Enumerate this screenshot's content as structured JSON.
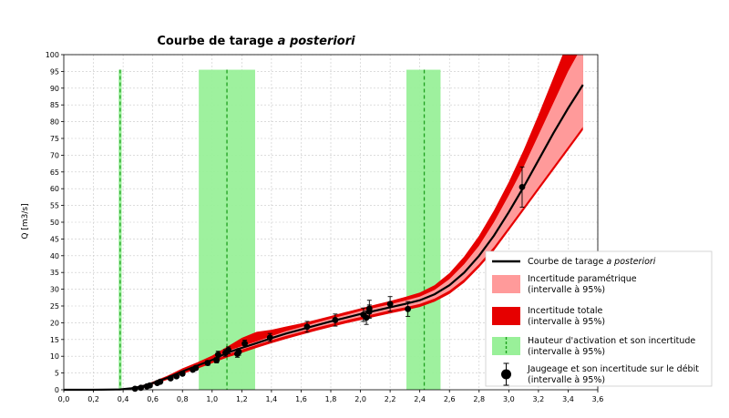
{
  "chart_data": {
    "type": "line",
    "title_main": "Courbe de tarage ",
    "title_em": "a posteriori",
    "xlabel": "",
    "ylabel": "Q [m3/s]",
    "xlim": [
      0,
      3.6
    ],
    "ylim": [
      0,
      100
    ],
    "xticks": [
      "0,0",
      "0,2",
      "0,4",
      "0,6",
      "0,8",
      "1,0",
      "1,2",
      "1,4",
      "1,6",
      "1,8",
      "2,0",
      "2,2",
      "2,4",
      "2,6",
      "2,8",
      "3,0",
      "3,2",
      "3,4",
      "3,6"
    ],
    "xtick_values": [
      0,
      0.2,
      0.4,
      0.6,
      0.8,
      1.0,
      1.2,
      1.4,
      1.6,
      1.8,
      2.0,
      2.2,
      2.4,
      2.6,
      2.8,
      3.0,
      3.2,
      3.4,
      3.6
    ],
    "yticks": [
      "0",
      "5",
      "10",
      "15",
      "20",
      "25",
      "30",
      "35",
      "40",
      "45",
      "50",
      "55",
      "60",
      "65",
      "70",
      "75",
      "80",
      "85",
      "90",
      "95",
      "100"
    ],
    "ytick_values": [
      0,
      5,
      10,
      15,
      20,
      25,
      30,
      35,
      40,
      45,
      50,
      55,
      60,
      65,
      70,
      75,
      80,
      85,
      90,
      95,
      100
    ],
    "grid": true,
    "legend_position": "bottom-right",
    "colors": {
      "curve": "#000000",
      "parametric": "#ff9a9a",
      "total": "#e60000",
      "activation": "#99f099",
      "activation_line": "#1fa01f",
      "gauging": "#000000"
    },
    "activation_heights": [
      {
        "value": 0.38,
        "low": 0.37,
        "high": 0.39
      },
      {
        "value": 1.1,
        "low": 0.91,
        "high": 1.29
      },
      {
        "value": 2.43,
        "low": 2.31,
        "high": 2.54
      }
    ],
    "activation_band_ymax": 95.5,
    "rating_curve": {
      "x": [
        0.0,
        0.2,
        0.38,
        0.45,
        0.5,
        0.55,
        0.6,
        0.7,
        0.8,
        0.9,
        1.0,
        1.1,
        1.2,
        1.3,
        1.4,
        1.5,
        1.6,
        1.7,
        1.8,
        1.9,
        2.0,
        2.1,
        2.2,
        2.3,
        2.4,
        2.5,
        2.6,
        2.7,
        2.8,
        2.9,
        3.0,
        3.1,
        3.2,
        3.3,
        3.4,
        3.5
      ],
      "q": [
        0,
        0,
        0.1,
        0.4,
        0.8,
        1.3,
        2.0,
        3.6,
        5.5,
        7.2,
        8.9,
        11.0,
        12.5,
        13.9,
        15.4,
        16.8,
        18.0,
        19.2,
        20.4,
        21.5,
        22.6,
        23.6,
        24.6,
        25.6,
        26.7,
        28.5,
        31.2,
        35.0,
        40.0,
        46.0,
        53.0,
        60.5,
        68.5,
        76.5,
        84.0,
        91.0
      ]
    },
    "parametric_band": {
      "low": [
        0,
        0,
        0.1,
        0.35,
        0.7,
        1.2,
        1.85,
        3.4,
        5.2,
        6.9,
        8.6,
        10.5,
        12.0,
        13.4,
        14.8,
        16.1,
        17.3,
        18.5,
        19.6,
        20.7,
        21.7,
        22.7,
        23.7,
        24.6,
        25.6,
        27.2,
        29.6,
        33.0,
        37.5,
        42.6,
        48.5,
        54.5,
        60.5,
        66.5,
        72.5,
        78.5
      ],
      "high": [
        0,
        0,
        0.1,
        0.45,
        0.9,
        1.4,
        2.15,
        3.8,
        5.8,
        7.5,
        9.2,
        11.5,
        13.0,
        14.4,
        16.0,
        17.5,
        18.7,
        20.0,
        21.2,
        22.3,
        23.5,
        24.5,
        25.5,
        26.6,
        27.8,
        29.8,
        33.0,
        37.5,
        43.0,
        50.0,
        58.0,
        66.5,
        76.0,
        85.5,
        95.0,
        103.0
      ]
    },
    "total_band": {
      "low": [
        0,
        0,
        0.05,
        0.25,
        0.55,
        1.0,
        1.6,
        3.0,
        4.7,
        6.3,
        7.9,
        9.6,
        11.0,
        12.5,
        13.9,
        15.2,
        16.4,
        17.6,
        18.7,
        19.8,
        20.8,
        21.8,
        22.8,
        23.7,
        24.7,
        26.3,
        28.6,
        32.0,
        36.5,
        41.5,
        47.5,
        53.5,
        59.5,
        65.5,
        71.5,
        77.5
      ],
      "high": [
        0,
        0,
        0.15,
        0.55,
        1.05,
        1.6,
        2.4,
        4.2,
        6.4,
        8.2,
        10.2,
        12.8,
        15.5,
        17.3,
        17.9,
        18.9,
        19.8,
        20.9,
        22.0,
        23.2,
        24.3,
        25.4,
        26.5,
        27.7,
        29.0,
        31.2,
        34.8,
        39.8,
        46.0,
        53.5,
        62.0,
        71.5,
        82.0,
        93.0,
        104.0,
        115.0
      ]
    },
    "gaugings": [
      {
        "x": 0.48,
        "y": 0.3,
        "err": 0.3
      },
      {
        "x": 0.52,
        "y": 0.6,
        "err": 0.3
      },
      {
        "x": 0.56,
        "y": 1.0,
        "err": 0.4
      },
      {
        "x": 0.58,
        "y": 1.3,
        "err": 0.4
      },
      {
        "x": 0.63,
        "y": 2.0,
        "err": 0.4
      },
      {
        "x": 0.65,
        "y": 2.4,
        "err": 0.4
      },
      {
        "x": 0.72,
        "y": 3.4,
        "err": 0.5
      },
      {
        "x": 0.76,
        "y": 4.0,
        "err": 0.5
      },
      {
        "x": 0.8,
        "y": 4.8,
        "err": 0.6
      },
      {
        "x": 0.87,
        "y": 6.0,
        "err": 0.6
      },
      {
        "x": 0.89,
        "y": 6.5,
        "err": 0.6
      },
      {
        "x": 0.97,
        "y": 8.0,
        "err": 0.7
      },
      {
        "x": 1.03,
        "y": 8.8,
        "err": 0.8
      },
      {
        "x": 1.04,
        "y": 10.5,
        "err": 1.0
      },
      {
        "x": 1.09,
        "y": 11.0,
        "err": 1.0
      },
      {
        "x": 1.11,
        "y": 11.8,
        "err": 1.0
      },
      {
        "x": 1.17,
        "y": 10.7,
        "err": 1.0
      },
      {
        "x": 1.18,
        "y": 11.3,
        "err": 1.0
      },
      {
        "x": 1.22,
        "y": 13.8,
        "err": 1.0
      },
      {
        "x": 1.39,
        "y": 15.6,
        "err": 1.2
      },
      {
        "x": 1.64,
        "y": 18.8,
        "err": 1.6
      },
      {
        "x": 1.83,
        "y": 20.8,
        "err": 1.8
      },
      {
        "x": 2.02,
        "y": 22.4,
        "err": 2.0
      },
      {
        "x": 2.04,
        "y": 21.5,
        "err": 2.0
      },
      {
        "x": 2.06,
        "y": 23.3,
        "err": 2.0
      },
      {
        "x": 2.06,
        "y": 24.2,
        "err": 2.5
      },
      {
        "x": 2.2,
        "y": 25.6,
        "err": 2.2
      },
      {
        "x": 2.32,
        "y": 24.1,
        "err": 2.2
      },
      {
        "x": 3.09,
        "y": 60.5,
        "err": 6.0
      }
    ],
    "legend": {
      "curve_main": "Courbe de tarage ",
      "curve_em": "a posteriori",
      "parametric_l1": "Incertitude paramétrique",
      "parametric_l2": "(intervalle à 95%)",
      "total_l1": "Incertitude totale",
      "total_l2": "(intervalle à 95%)",
      "activation_l1": "Hauteur d'activation et son incertitude",
      "activation_l2": "(intervalle à 95%)",
      "gauging_l1": "Jaugeage et son incertitude sur le débit",
      "gauging_l2": "(intervalle à 95%)"
    }
  }
}
